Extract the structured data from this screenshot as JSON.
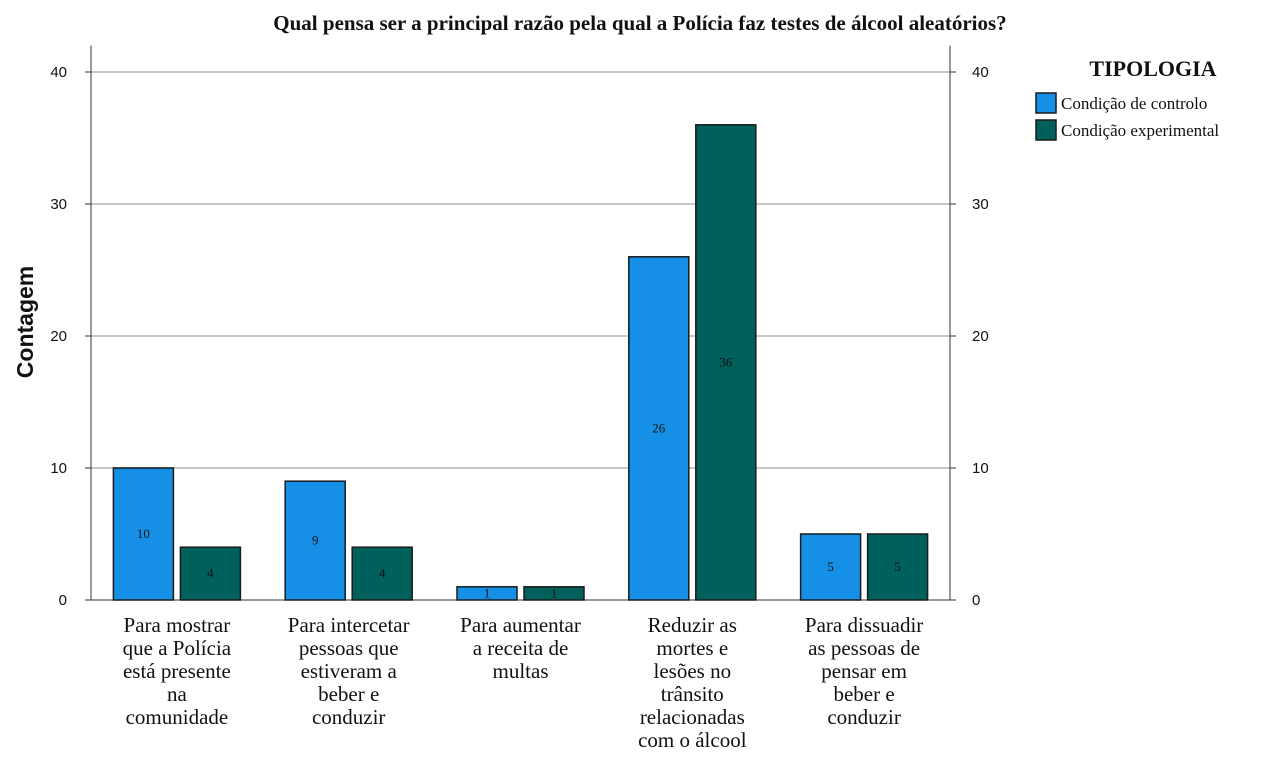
{
  "chart_data": {
    "type": "bar",
    "title": "Qual pensa ser a principal razão pela qual a Polícia faz testes de álcool aleatórios?",
    "ylabel": "Contagem",
    "xlabel": "",
    "ylim": [
      0,
      42
    ],
    "yticks": [
      0,
      10,
      20,
      30,
      40
    ],
    "grid": true,
    "legend_title": "TIPOLOGIA",
    "legend_position": "top-right",
    "categories": [
      [
        "Para mostrar",
        "que a Polícia",
        "está presente",
        "na",
        "comunidade"
      ],
      [
        "Para intercetar",
        "pessoas que",
        "estiveram a",
        "beber e",
        "conduzir"
      ],
      [
        "Para aumentar",
        "a receita de",
        "multas"
      ],
      [
        "Reduzir as",
        "mortes e",
        "lesões no",
        "trânsito",
        "relacionadas",
        "com o álcool"
      ],
      [
        "Para dissuadir",
        "as pessoas de",
        "pensar em",
        "beber e",
        "conduzir"
      ]
    ],
    "series": [
      {
        "name": "Condição de controlo",
        "color": "#1590e6",
        "values": [
          10,
          9,
          1,
          26,
          5
        ],
        "labels": [
          "10",
          "9",
          "1",
          "26",
          "5"
        ]
      },
      {
        "name": "Condição experimental",
        "color": "#00605b",
        "values": [
          4,
          4,
          1,
          36,
          5
        ],
        "labels": [
          "4",
          "4",
          "1",
          "36",
          "5"
        ]
      }
    ]
  }
}
